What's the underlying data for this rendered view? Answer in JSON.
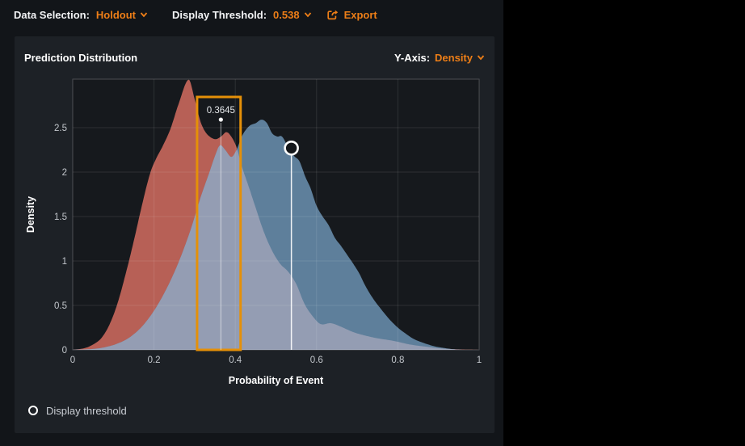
{
  "topbar": {
    "data_selection_label": "Data Selection:",
    "data_selection_value": "Holdout",
    "threshold_label": "Display Threshold:",
    "threshold_value": "0.538",
    "export_label": "Export",
    "icons": [
      "chevron-down-icon",
      "export-icon"
    ]
  },
  "panel": {
    "title": "Prediction Distribution",
    "y_axis_label": "Y-Axis:",
    "y_axis_value": "Density"
  },
  "legend": {
    "items": [
      {
        "icon": "circle-outline-icon",
        "label": "Display threshold"
      }
    ]
  },
  "colors": {
    "accent_text": "#ED7E17",
    "highlight_box": "#E59008",
    "negative_fill": "#B76056",
    "positive_fill": "#5E7F9B",
    "overlap_fill": "#949DB3",
    "plot_background": "#16191D",
    "grid": "rgba(255,255,255,0.10)",
    "border": "rgba(255,255,255,0.22)",
    "tick_text": "#c3c7cc",
    "axis_title_text": "#ffffff",
    "marker": "#ffffff"
  },
  "chart_data": {
    "type": "area",
    "title": "Prediction Distribution",
    "xlabel": "Probability of Event",
    "ylabel": "Density",
    "xlim": [
      0,
      1
    ],
    "ylim": [
      0,
      3.045
    ],
    "xticks": [
      0,
      0.2,
      0.4,
      0.6,
      0.8,
      1
    ],
    "xtick_labels": [
      "0",
      "0.2",
      "0.4",
      "0.6",
      "0.8",
      "1"
    ],
    "yticks": [
      0,
      0.5,
      1,
      1.5,
      2,
      2.5
    ],
    "ytick_labels": [
      "0",
      "0.5",
      "1",
      "1.5",
      "2",
      "2.5"
    ],
    "grid": true,
    "series": [
      {
        "name": "negative-class-density",
        "points": [
          [
            0,
            0
          ],
          [
            0.03,
            0.02
          ],
          [
            0.05,
            0.06
          ],
          [
            0.07,
            0.13
          ],
          [
            0.09,
            0.28
          ],
          [
            0.11,
            0.52
          ],
          [
            0.13,
            0.85
          ],
          [
            0.15,
            1.22
          ],
          [
            0.17,
            1.62
          ],
          [
            0.19,
            1.98
          ],
          [
            0.205,
            2.15
          ],
          [
            0.22,
            2.28
          ],
          [
            0.24,
            2.48
          ],
          [
            0.26,
            2.76
          ],
          [
            0.285,
            3.04
          ],
          [
            0.3,
            2.82
          ],
          [
            0.315,
            2.56
          ],
          [
            0.33,
            2.43
          ],
          [
            0.35,
            2.37
          ],
          [
            0.365,
            2.4
          ],
          [
            0.378,
            2.45
          ],
          [
            0.39,
            2.4
          ],
          [
            0.403,
            2.28
          ],
          [
            0.417,
            2.05
          ],
          [
            0.432,
            1.85
          ],
          [
            0.45,
            1.6
          ],
          [
            0.47,
            1.33
          ],
          [
            0.49,
            1.12
          ],
          [
            0.51,
            0.97
          ],
          [
            0.53,
            0.88
          ],
          [
            0.55,
            0.74
          ],
          [
            0.57,
            0.52
          ],
          [
            0.59,
            0.38
          ],
          [
            0.61,
            0.29
          ],
          [
            0.635,
            0.3
          ],
          [
            0.66,
            0.26
          ],
          [
            0.69,
            0.2
          ],
          [
            0.72,
            0.16
          ],
          [
            0.75,
            0.13
          ],
          [
            0.79,
            0.1
          ],
          [
            0.83,
            0.06
          ],
          [
            0.87,
            0.035
          ],
          [
            0.91,
            0.015
          ],
          [
            0.95,
            0.005
          ],
          [
            1,
            0
          ]
        ]
      },
      {
        "name": "positive-class-density",
        "points": [
          [
            0,
            0
          ],
          [
            0.05,
            0.01
          ],
          [
            0.08,
            0.03
          ],
          [
            0.11,
            0.07
          ],
          [
            0.14,
            0.14
          ],
          [
            0.17,
            0.26
          ],
          [
            0.2,
            0.44
          ],
          [
            0.23,
            0.68
          ],
          [
            0.26,
            0.98
          ],
          [
            0.29,
            1.35
          ],
          [
            0.315,
            1.72
          ],
          [
            0.335,
            1.98
          ],
          [
            0.35,
            2.18
          ],
          [
            0.362,
            2.3
          ],
          [
            0.375,
            2.25
          ],
          [
            0.39,
            2.17
          ],
          [
            0.402,
            2.24
          ],
          [
            0.418,
            2.42
          ],
          [
            0.435,
            2.52
          ],
          [
            0.45,
            2.55
          ],
          [
            0.465,
            2.59
          ],
          [
            0.478,
            2.55
          ],
          [
            0.49,
            2.44
          ],
          [
            0.503,
            2.4
          ],
          [
            0.515,
            2.4
          ],
          [
            0.53,
            2.28
          ],
          [
            0.545,
            2.18
          ],
          [
            0.558,
            2.12
          ],
          [
            0.572,
            1.95
          ],
          [
            0.585,
            1.82
          ],
          [
            0.6,
            1.62
          ],
          [
            0.615,
            1.5
          ],
          [
            0.63,
            1.4
          ],
          [
            0.645,
            1.26
          ],
          [
            0.66,
            1.17
          ],
          [
            0.675,
            1.07
          ],
          [
            0.69,
            0.97
          ],
          [
            0.705,
            0.86
          ],
          [
            0.72,
            0.72
          ],
          [
            0.74,
            0.57
          ],
          [
            0.76,
            0.45
          ],
          [
            0.78,
            0.34
          ],
          [
            0.8,
            0.25
          ],
          [
            0.82,
            0.18
          ],
          [
            0.84,
            0.12
          ],
          [
            0.865,
            0.075
          ],
          [
            0.89,
            0.04
          ],
          [
            0.915,
            0.02
          ],
          [
            0.94,
            0.005
          ],
          [
            0.96,
            0
          ],
          [
            1,
            0
          ]
        ]
      }
    ],
    "highlight_box": {
      "x0": 0.306,
      "x1": 0.413,
      "y0": 0,
      "y1": 2.845
    },
    "threshold_marker": {
      "x": 0.538,
      "y": 2.27,
      "legend_label": "Display threshold"
    },
    "hover_tooltip": {
      "x": 0.3645,
      "y": 2.59,
      "label": "0.3645"
    }
  }
}
